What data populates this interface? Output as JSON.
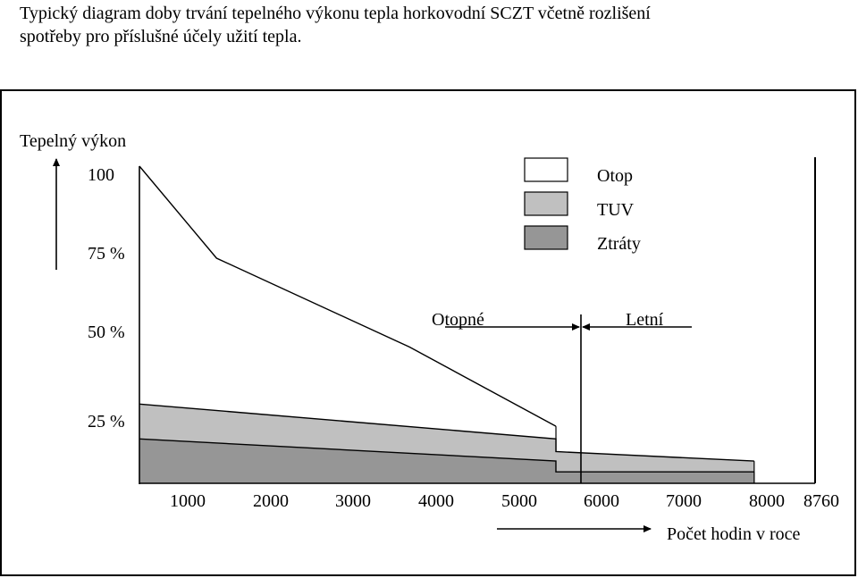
{
  "caption": {
    "line1": "Typický diagram doby trvání tepelného výkonu tepla horkovodní SCZT včetně rozlišení",
    "line2": "spotřeby pro příslušné účely užití tepla."
  },
  "chart_data": {
    "type": "area",
    "ylabel": "Tepelný výkon",
    "xlabel": "Počet hodin v roce",
    "x_ticks": [
      "1000",
      "2000",
      "3000",
      "4000",
      "5000",
      "6000",
      "7000",
      "8000",
      "8760"
    ],
    "y_ticks": [
      "100",
      "75 %",
      "50 %",
      "25 %"
    ],
    "xlim": [
      0,
      8760
    ],
    "ylim": [
      0,
      100
    ],
    "series": [
      {
        "name": "Otop",
        "color": "#ffffff",
        "x": [
          0,
          1000,
          3500,
          5400
        ],
        "y": [
          100,
          71,
          43,
          18
        ]
      },
      {
        "name": "TUV",
        "color": "#c0c0c0",
        "x": [
          0,
          5400,
          5400,
          7970
        ],
        "y": [
          25,
          14,
          10,
          7
        ]
      },
      {
        "name": "Ztráty",
        "color": "#969696",
        "x": [
          0,
          5400,
          5400,
          7970
        ],
        "y": [
          14,
          7,
          3.6,
          3.6
        ]
      }
    ],
    "annotations": {
      "heating_season": "Otopné",
      "summer": "Letní",
      "boundary_hours": 5400
    },
    "legend": "top-right"
  }
}
